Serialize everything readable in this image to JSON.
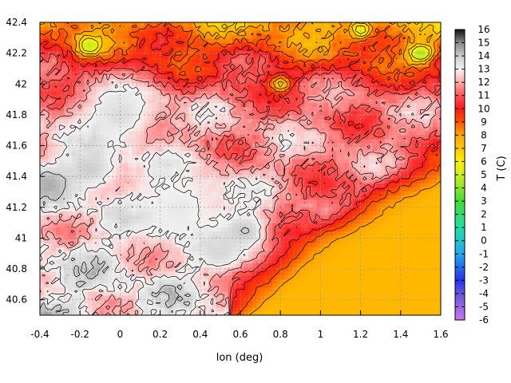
{
  "chart_data": {
    "type": "heatmap",
    "title": "",
    "xlabel": "lon (deg)",
    "ylabel": "",
    "colorbar_label": "T (C)",
    "xlim": [
      -0.4,
      1.6
    ],
    "ylim": [
      40.5,
      42.4
    ],
    "x_ticks": [
      "-0.4",
      "-0.2",
      "0",
      "0.2",
      "0.4",
      "0.6",
      "0.8",
      "1",
      "1.2",
      "1.4",
      "1.6"
    ],
    "y_ticks": [
      "40.6",
      "40.8",
      "41",
      "41.2",
      "41.4",
      "41.6",
      "41.8",
      "42",
      "42.2",
      "42.4"
    ],
    "colorbar_range": [
      -6,
      16
    ],
    "colorbar_ticks": [
      "16",
      "15",
      "14",
      "13",
      "12",
      "11",
      "10",
      "9",
      "8",
      "7",
      "6",
      "5",
      "4",
      "3",
      "2",
      "1",
      "0",
      "-1",
      "-2",
      "-3",
      "-4",
      "-5",
      "-6"
    ],
    "grid": true,
    "colormap": [
      {
        "v": -6,
        "c": "#cc77ee"
      },
      {
        "v": -4,
        "c": "#6655dd"
      },
      {
        "v": -3,
        "c": "#2233ee"
      },
      {
        "v": -1,
        "c": "#22aaee"
      },
      {
        "v": 1,
        "c": "#22ddaa"
      },
      {
        "v": 3,
        "c": "#44dd33"
      },
      {
        "v": 5,
        "c": "#ccee22"
      },
      {
        "v": 6,
        "c": "#ffee00"
      },
      {
        "v": 8,
        "c": "#ffa500"
      },
      {
        "v": 9,
        "c": "#ff5500"
      },
      {
        "v": 10,
        "c": "#ff1a1a"
      },
      {
        "v": 11,
        "c": "#ff5555"
      },
      {
        "v": 12,
        "c": "#ffaaaa"
      },
      {
        "v": 13,
        "c": "#f4f4f4"
      },
      {
        "v": 14,
        "c": "#cccccc"
      },
      {
        "v": 15,
        "c": "#888888"
      },
      {
        "v": 16,
        "c": "#111111"
      }
    ],
    "field_features": [
      {
        "lon": 1.45,
        "lat": 40.75,
        "t": 6.5,
        "r": 0.45
      },
      {
        "lon": 1.1,
        "lat": 40.65,
        "t": 7.2,
        "r": 0.35
      },
      {
        "lon": 0.62,
        "lat": 41.05,
        "t": 14.2,
        "r": 0.12
      },
      {
        "lon": 0.5,
        "lat": 40.9,
        "t": 13.8,
        "r": 0.1
      },
      {
        "lon": -0.35,
        "lat": 41.35,
        "t": 14.5,
        "r": 0.12
      },
      {
        "lon": -0.15,
        "lat": 41.45,
        "t": 14.0,
        "r": 0.15
      },
      {
        "lon": 0.0,
        "lat": 41.8,
        "t": 13.6,
        "r": 0.2
      },
      {
        "lon": 0.3,
        "lat": 41.2,
        "t": 13.3,
        "r": 0.25
      },
      {
        "lon": 1.5,
        "lat": 42.2,
        "t": 4.0,
        "r": 0.06
      },
      {
        "lon": -0.15,
        "lat": 42.25,
        "t": 4.5,
        "r": 0.06
      },
      {
        "lon": 1.2,
        "lat": 42.35,
        "t": 5.0,
        "r": 0.05
      },
      {
        "lon": 0.8,
        "lat": 42.0,
        "t": 6.5,
        "r": 0.05
      }
    ]
  }
}
